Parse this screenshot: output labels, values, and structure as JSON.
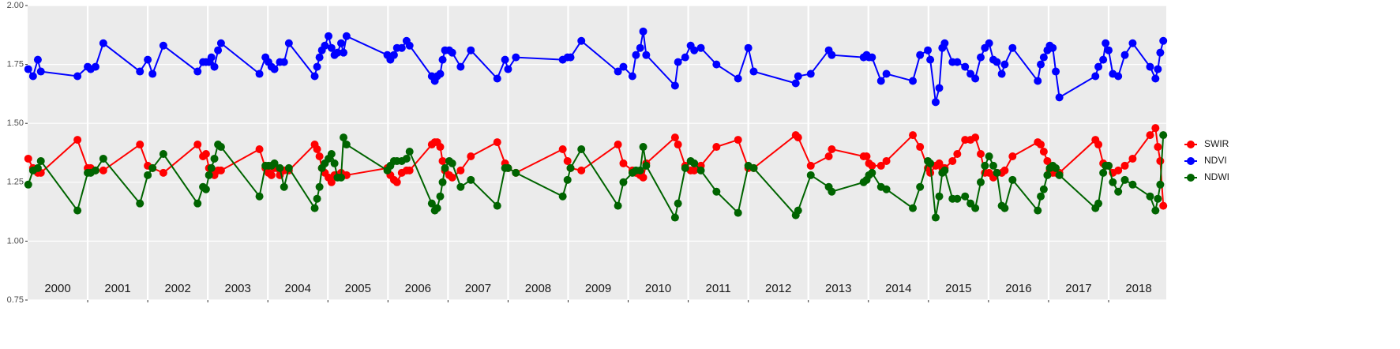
{
  "chart_data": {
    "type": "line",
    "x": [
      2000.01,
      2000.09,
      2000.17,
      2000.22,
      2000.83,
      2001.0,
      2001.05,
      2001.13,
      2001.26,
      2001.87,
      2002.0,
      2002.08,
      2002.26,
      2002.83,
      2002.92,
      2002.97,
      2003.02,
      2003.06,
      2003.11,
      2003.17,
      2003.22,
      2003.86,
      2003.96,
      2004.01,
      2004.06,
      2004.11,
      2004.2,
      2004.27,
      2004.35,
      2004.78,
      2004.82,
      2004.86,
      2004.9,
      2004.95,
      2005.01,
      2005.06,
      2005.11,
      2005.16,
      2005.22,
      2005.26,
      2005.31,
      2005.99,
      2006.04,
      2006.1,
      2006.15,
      2006.23,
      2006.31,
      2006.36,
      2006.73,
      2006.78,
      2006.82,
      2006.87,
      2006.91,
      2006.95,
      2007.02,
      2007.07,
      2007.21,
      2007.38,
      2007.82,
      2007.95,
      2008.0,
      2008.13,
      2008.91,
      2008.99,
      2009.04,
      2009.22,
      2009.83,
      2009.92,
      2010.07,
      2010.13,
      2010.2,
      2010.25,
      2010.3,
      2010.78,
      2010.83,
      2010.95,
      2011.04,
      2011.1,
      2011.21,
      2011.47,
      2011.83,
      2012.0,
      2012.09,
      2012.79,
      2012.83,
      2013.04,
      2013.34,
      2013.39,
      2013.92,
      2013.97,
      2014.01,
      2014.06,
      2014.21,
      2014.3,
      2014.74,
      2014.86,
      2014.99,
      2015.03,
      2015.12,
      2015.18,
      2015.23,
      2015.27,
      2015.4,
      2015.48,
      2015.61,
      2015.7,
      2015.78,
      2015.87,
      2015.94,
      2016.01,
      2016.08,
      2016.14,
      2016.22,
      2016.27,
      2016.4,
      2016.82,
      2016.87,
      2016.92,
      2016.98,
      2017.02,
      2017.07,
      2017.12,
      2017.18,
      2017.78,
      2017.83,
      2017.91,
      2017.95,
      2018.0,
      2018.07,
      2018.16,
      2018.27,
      2018.4,
      2018.69,
      2018.78,
      2018.82,
      2018.86,
      2018.91
    ],
    "series": [
      {
        "name": "SWIR",
        "color": "#ff0000",
        "values": [
          1.35,
          1.31,
          1.29,
          1.29,
          1.43,
          1.31,
          1.31,
          1.3,
          1.3,
          1.41,
          1.32,
          1.31,
          1.29,
          1.41,
          1.36,
          1.37,
          1.31,
          1.29,
          1.28,
          1.3,
          1.3,
          1.39,
          1.31,
          1.29,
          1.28,
          1.31,
          1.28,
          1.3,
          1.3,
          1.41,
          1.39,
          1.36,
          1.31,
          1.29,
          1.27,
          1.25,
          1.28,
          1.28,
          1.29,
          1.28,
          1.28,
          1.31,
          1.28,
          1.26,
          1.25,
          1.29,
          1.3,
          1.3,
          1.41,
          1.42,
          1.42,
          1.4,
          1.34,
          1.3,
          1.28,
          1.27,
          1.3,
          1.36,
          1.42,
          1.33,
          1.31,
          1.29,
          1.39,
          1.34,
          1.31,
          1.3,
          1.41,
          1.33,
          1.3,
          1.29,
          1.28,
          1.27,
          1.33,
          1.44,
          1.41,
          1.32,
          1.3,
          1.3,
          1.32,
          1.4,
          1.43,
          1.31,
          1.31,
          1.45,
          1.44,
          1.32,
          1.36,
          1.39,
          1.36,
          1.36,
          1.33,
          1.32,
          1.32,
          1.34,
          1.45,
          1.4,
          1.31,
          1.29,
          1.32,
          1.33,
          1.31,
          1.31,
          1.34,
          1.37,
          1.43,
          1.43,
          1.44,
          1.37,
          1.29,
          1.29,
          1.27,
          1.29,
          1.29,
          1.3,
          1.36,
          1.42,
          1.41,
          1.38,
          1.34,
          1.3,
          1.29,
          1.29,
          1.29,
          1.43,
          1.41,
          1.33,
          1.32,
          1.32,
          1.29,
          1.3,
          1.32,
          1.35,
          1.45,
          1.48,
          1.4,
          1.34,
          1.15
        ]
      },
      {
        "name": "NDVI",
        "color": "#0000ff",
        "values": [
          1.73,
          1.7,
          1.77,
          1.72,
          1.7,
          1.74,
          1.73,
          1.74,
          1.84,
          1.72,
          1.77,
          1.71,
          1.83,
          1.72,
          1.76,
          1.76,
          1.76,
          1.78,
          1.74,
          1.81,
          1.84,
          1.71,
          1.78,
          1.76,
          1.74,
          1.73,
          1.76,
          1.76,
          1.84,
          1.7,
          1.74,
          1.78,
          1.81,
          1.83,
          1.87,
          1.82,
          1.79,
          1.8,
          1.84,
          1.8,
          1.87,
          1.79,
          1.77,
          1.79,
          1.82,
          1.82,
          1.85,
          1.83,
          1.7,
          1.68,
          1.7,
          1.71,
          1.77,
          1.81,
          1.81,
          1.8,
          1.74,
          1.81,
          1.69,
          1.77,
          1.73,
          1.78,
          1.77,
          1.78,
          1.78,
          1.85,
          1.72,
          1.74,
          1.7,
          1.79,
          1.82,
          1.89,
          1.79,
          1.66,
          1.76,
          1.78,
          1.83,
          1.81,
          1.82,
          1.75,
          1.69,
          1.82,
          1.72,
          1.67,
          1.7,
          1.71,
          1.81,
          1.79,
          1.78,
          1.79,
          1.78,
          1.78,
          1.68,
          1.71,
          1.68,
          1.79,
          1.81,
          1.77,
          1.59,
          1.65,
          1.82,
          1.84,
          1.76,
          1.76,
          1.74,
          1.71,
          1.69,
          1.78,
          1.82,
          1.84,
          1.77,
          1.76,
          1.71,
          1.75,
          1.82,
          1.68,
          1.75,
          1.78,
          1.81,
          1.83,
          1.82,
          1.72,
          1.61,
          1.7,
          1.74,
          1.77,
          1.84,
          1.81,
          1.71,
          1.7,
          1.79,
          1.84,
          1.74,
          1.69,
          1.73,
          1.8,
          1.85
        ]
      },
      {
        "name": "NDWI",
        "color": "#006400",
        "values": [
          1.24,
          1.3,
          1.31,
          1.34,
          1.13,
          1.29,
          1.29,
          1.3,
          1.35,
          1.16,
          1.28,
          1.31,
          1.37,
          1.16,
          1.23,
          1.22,
          1.28,
          1.31,
          1.35,
          1.41,
          1.4,
          1.19,
          1.32,
          1.32,
          1.32,
          1.33,
          1.31,
          1.23,
          1.31,
          1.14,
          1.18,
          1.23,
          1.31,
          1.33,
          1.35,
          1.37,
          1.33,
          1.27,
          1.27,
          1.44,
          1.41,
          1.3,
          1.32,
          1.34,
          1.34,
          1.34,
          1.35,
          1.38,
          1.16,
          1.13,
          1.14,
          1.19,
          1.25,
          1.31,
          1.34,
          1.33,
          1.23,
          1.26,
          1.15,
          1.31,
          1.31,
          1.29,
          1.19,
          1.26,
          1.31,
          1.39,
          1.15,
          1.25,
          1.29,
          1.3,
          1.3,
          1.4,
          1.32,
          1.1,
          1.16,
          1.31,
          1.34,
          1.33,
          1.3,
          1.21,
          1.12,
          1.32,
          1.31,
          1.11,
          1.13,
          1.28,
          1.23,
          1.21,
          1.25,
          1.26,
          1.28,
          1.29,
          1.23,
          1.22,
          1.14,
          1.23,
          1.34,
          1.33,
          1.1,
          1.19,
          1.29,
          1.3,
          1.18,
          1.18,
          1.19,
          1.16,
          1.14,
          1.25,
          1.32,
          1.36,
          1.32,
          1.29,
          1.15,
          1.14,
          1.26,
          1.13,
          1.19,
          1.22,
          1.28,
          1.31,
          1.32,
          1.31,
          1.28,
          1.14,
          1.16,
          1.29,
          1.32,
          1.32,
          1.25,
          1.21,
          1.26,
          1.24,
          1.19,
          1.13,
          1.18,
          1.24,
          1.45
        ]
      }
    ],
    "xlim": [
      2000,
      2018.96
    ],
    "xticks": [
      2001,
      2002,
      2003,
      2004,
      2005,
      2006,
      2007,
      2008,
      2009,
      2010,
      2011,
      2012,
      2013,
      2014,
      2015,
      2016,
      2017,
      2018
    ],
    "year_labels": [
      {
        "value": 2000.5,
        "label": "2000"
      },
      {
        "value": 2001.5,
        "label": "2001"
      },
      {
        "value": 2002.5,
        "label": "2002"
      },
      {
        "value": 2003.5,
        "label": "2003"
      },
      {
        "value": 2004.5,
        "label": "2004"
      },
      {
        "value": 2005.5,
        "label": "2005"
      },
      {
        "value": 2006.5,
        "label": "2006"
      },
      {
        "value": 2007.5,
        "label": "2007"
      },
      {
        "value": 2008.5,
        "label": "2008"
      },
      {
        "value": 2009.5,
        "label": "2009"
      },
      {
        "value": 2010.5,
        "label": "2010"
      },
      {
        "value": 2011.5,
        "label": "2011"
      },
      {
        "value": 2012.5,
        "label": "2012"
      },
      {
        "value": 2013.5,
        "label": "2013"
      },
      {
        "value": 2014.5,
        "label": "2014"
      },
      {
        "value": 2015.5,
        "label": "2015"
      },
      {
        "value": 2016.5,
        "label": "2016"
      },
      {
        "value": 2017.5,
        "label": "2017"
      },
      {
        "value": 2018.5,
        "label": "2018"
      }
    ],
    "ylim": [
      0.75,
      2.0
    ],
    "yticks": [
      0.75,
      {
        "value": 1.0,
        "label": "1.00"
      },
      1.25,
      {
        "value": 1.5,
        "label": "1.50"
      },
      1.75,
      {
        "value": 2.0,
        "label": "2.00"
      }
    ],
    "grid": true,
    "legend": "right"
  }
}
